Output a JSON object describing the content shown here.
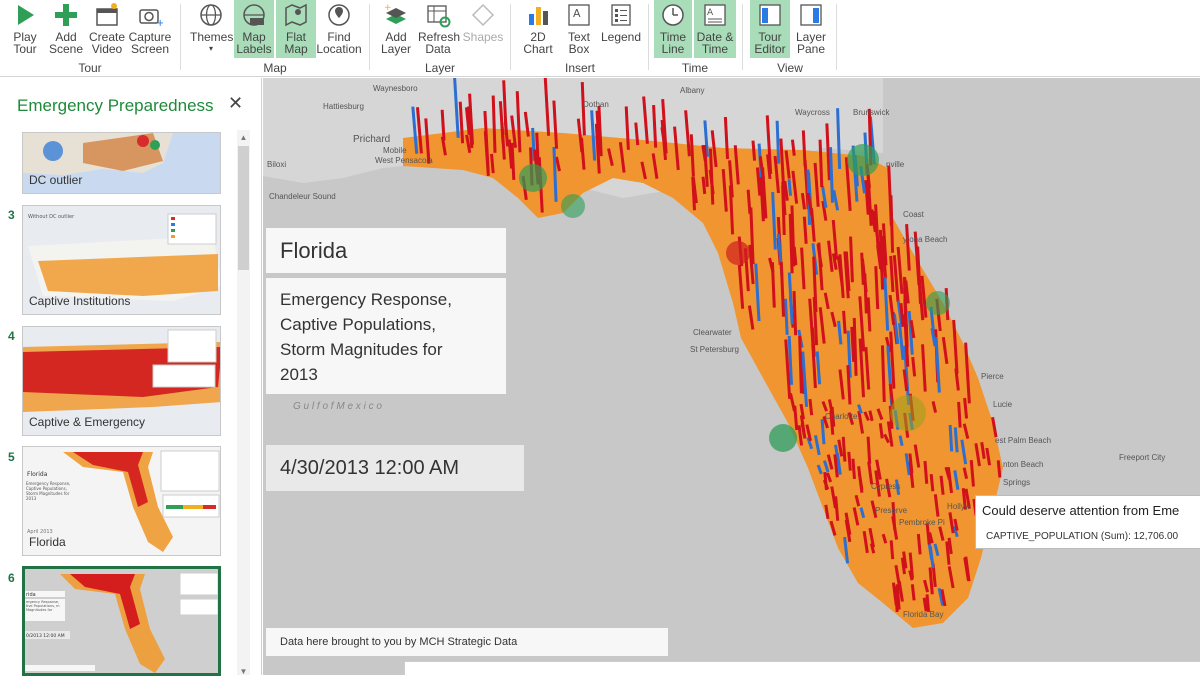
{
  "ribbon": {
    "buttons": {
      "play_tour": "Play\nTour",
      "add_scene": "Add\nScene",
      "create_video": "Create\nVideo",
      "capture_screen": "Capture\nScreen",
      "themes": "Themes",
      "map_labels": "Map\nLabels",
      "flat_map": "Flat\nMap",
      "find_location": "Find\nLocation",
      "add_layer": "Add\nLayer",
      "refresh_data": "Refresh\nData",
      "shapes": "Shapes",
      "chart_2d": "2D\nChart",
      "text_box": "Text\nBox",
      "legend": "Legend",
      "time_line": "Time\nLine",
      "date_time": "Date &\nTime",
      "tour_editor": "Tour\nEditor",
      "layer_pane": "Layer\nPane"
    },
    "groups": {
      "tour": "Tour",
      "map": "Map",
      "layer": "Layer",
      "insert": "Insert",
      "time": "Time",
      "view": "View"
    }
  },
  "tour_pane": {
    "title": "Emergency Preparedness",
    "close_glyph": "✕",
    "scenes": [
      {
        "number": "",
        "name": "DC outlier"
      },
      {
        "number": "3",
        "name": "Captive Institutions"
      },
      {
        "number": "4",
        "name": "Captive & Emergency"
      },
      {
        "number": "5",
        "name": "Florida"
      },
      {
        "number": "6",
        "name": ""
      }
    ],
    "thumb_texts": {
      "s3_caption": "Without DC outlier",
      "s5_title": "Florida",
      "s5_sub": "Emergency Response, Captive Populations, Storm Magnitudes for 2013",
      "s5_date": "April 2013",
      "s6_title": "rida",
      "s6_sub": "ergency Response, tive Populations, m Magnitudes for",
      "s6_date": "0/2013 12:00 AM"
    }
  },
  "map": {
    "labels": {
      "hattiesburg": "Hattiesburg",
      "waynesboro": "Waynesboro",
      "dothan": "Dothan",
      "albany": "Albany",
      "waycross": "Waycross",
      "brunswick": "Brunswick",
      "pritchard": "Prichard",
      "mobile": "Mobile",
      "west_pensacola": "West Pensacola",
      "biloxi": "Biloxi",
      "chandeleur_sound": "Chandeleur Sound",
      "jacksonville": "nville",
      "coast": "Coast",
      "daytona_beach": "ytona Beach",
      "clearwater": "Clearwater",
      "st_petersburg": "St Petersburg",
      "pierce": "Pierce",
      "lucie": "Lucie",
      "west_palm_beach": "est Palm Beach",
      "boynton_beach": "nton Beach",
      "springs": "Springs",
      "freeport_city": "Freeport City",
      "cypress": "Cypress",
      "preserve": "Preserve",
      "pembroke_pines": "Pembroke Pi",
      "hollywood": "Hollyw",
      "charlotte": "Charlotte",
      "florida_bay": "Florida Bay",
      "gulf_of_mexico": "G u l f   o f   M e x i c o"
    },
    "title_card": "Florida",
    "subtitle_card": "Emergency Response,\nCaptive Populations,\nStorm Magnitudes for\n2013",
    "date_card": "4/30/2013 12:00 AM",
    "credit": "Data here brought to you by MCH Strategic Data",
    "tooltip": {
      "line1": "Could deserve attention from Eme",
      "line2": "CAPTIVE_POPULATION (Sum): 12,706.00"
    }
  },
  "colors": {
    "accent_green": "#217346",
    "ribbon_active": "#a9dcb8",
    "map_land": "#f0952f",
    "bar_red": "#d0101a",
    "bar_blue": "#2d6fd1"
  }
}
